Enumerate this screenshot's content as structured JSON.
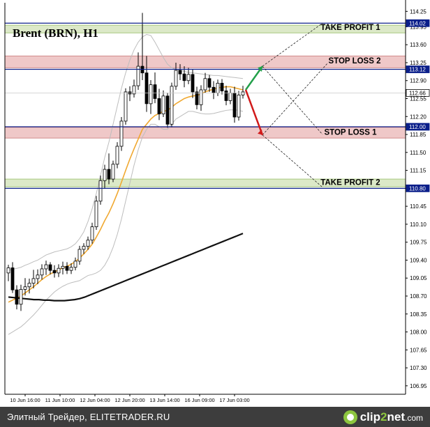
{
  "chart_data": {
    "type": "candlestick",
    "title": "Brent (BRN), H1",
    "price_ticks": [
      "114.25",
      "113.95",
      "113.60",
      "113.25",
      "112.90",
      "112.55",
      "112.20",
      "111.85",
      "111.50",
      "111.15",
      "110.80",
      "110.45",
      "110.10",
      "109.75",
      "109.40",
      "109.05",
      "108.70",
      "108.35",
      "108.00",
      "107.65",
      "107.30",
      "106.95"
    ],
    "ylim": [
      106.88,
      114.28
    ],
    "time_ticks": [
      "10 Jun 16:00",
      "11 Jun 10:00",
      "12 Jun 04:00",
      "12 Jun 20:00",
      "13 Jun 14:00",
      "16 Jun 09:00",
      "17 Jun 03:00"
    ],
    "price_labels": [
      {
        "text": "114.02",
        "value": 114.02,
        "color": "#0b1f8a"
      },
      {
        "text": "113.12",
        "value": 113.12,
        "color": "#0b1f8a"
      },
      {
        "text": "112.66",
        "value": 112.66,
        "color": "#ffffff"
      },
      {
        "text": "112.00",
        "value": 112.0,
        "color": "#0b1f8a"
      },
      {
        "text": "110.80",
        "value": 110.8,
        "color": "#0b1f8a"
      }
    ],
    "levels": [
      {
        "name": "TAKE PROFIT 1",
        "value": 114.02
      },
      {
        "name": "STOP LOSS 2",
        "value": 113.12
      },
      {
        "name": "STOP LOSS 1",
        "value": 112.0
      },
      {
        "name": "TAKE PROFIT 2",
        "value": 110.8
      }
    ],
    "zones": [
      {
        "label": "TAKE PROFIT 1",
        "from": 113.83,
        "to": 113.98,
        "fill": "#dce9c8",
        "stroke": "#a8c97f"
      },
      {
        "label": "STOP LOSS 2",
        "from": 113.15,
        "to": 113.38,
        "fill": "#efc8c8",
        "stroke": "#d08a8a"
      },
      {
        "label": "STOP LOSS 1",
        "from": 111.78,
        "to": 111.99,
        "fill": "#efc8c8",
        "stroke": "#d08a8a"
      },
      {
        "label": "TAKE PROFIT 2",
        "from": 110.83,
        "to": 110.98,
        "fill": "#dce9c8",
        "stroke": "#a8c97f"
      }
    ],
    "candles": [
      {
        "o": 109.15,
        "h": 109.31,
        "l": 108.99,
        "c": 109.25
      },
      {
        "o": 109.25,
        "h": 109.36,
        "l": 108.76,
        "c": 108.82
      },
      {
        "o": 108.82,
        "h": 108.91,
        "l": 108.44,
        "c": 108.54
      },
      {
        "o": 108.54,
        "h": 108.92,
        "l": 108.41,
        "c": 108.83
      },
      {
        "o": 108.83,
        "h": 109.05,
        "l": 108.71,
        "c": 108.88
      },
      {
        "o": 108.88,
        "h": 109.04,
        "l": 108.75,
        "c": 108.95
      },
      {
        "o": 108.95,
        "h": 109.21,
        "l": 108.85,
        "c": 109.04
      },
      {
        "o": 109.04,
        "h": 109.22,
        "l": 108.93,
        "c": 109.11
      },
      {
        "o": 109.11,
        "h": 109.32,
        "l": 109.02,
        "c": 109.23
      },
      {
        "o": 109.23,
        "h": 109.39,
        "l": 109.11,
        "c": 109.31
      },
      {
        "o": 109.31,
        "h": 109.36,
        "l": 109.12,
        "c": 109.2
      },
      {
        "o": 109.2,
        "h": 109.3,
        "l": 109.06,
        "c": 109.15
      },
      {
        "o": 109.15,
        "h": 109.32,
        "l": 109.07,
        "c": 109.24
      },
      {
        "o": 109.24,
        "h": 109.37,
        "l": 109.12,
        "c": 109.28
      },
      {
        "o": 109.28,
        "h": 109.36,
        "l": 109.13,
        "c": 109.2
      },
      {
        "o": 109.2,
        "h": 109.34,
        "l": 109.13,
        "c": 109.26
      },
      {
        "o": 109.26,
        "h": 109.45,
        "l": 109.2,
        "c": 109.38
      },
      {
        "o": 109.38,
        "h": 109.68,
        "l": 109.31,
        "c": 109.61
      },
      {
        "o": 109.61,
        "h": 109.73,
        "l": 109.52,
        "c": 109.67
      },
      {
        "o": 109.67,
        "h": 109.86,
        "l": 109.6,
        "c": 109.79
      },
      {
        "o": 109.79,
        "h": 110.13,
        "l": 109.72,
        "c": 110.05
      },
      {
        "o": 110.05,
        "h": 110.65,
        "l": 109.99,
        "c": 110.55
      },
      {
        "o": 110.55,
        "h": 111.05,
        "l": 110.48,
        "c": 110.95
      },
      {
        "o": 110.95,
        "h": 111.26,
        "l": 110.79,
        "c": 111.17
      },
      {
        "o": 111.17,
        "h": 111.48,
        "l": 110.88,
        "c": 110.98
      },
      {
        "o": 110.98,
        "h": 111.34,
        "l": 110.92,
        "c": 111.27
      },
      {
        "o": 111.27,
        "h": 111.7,
        "l": 111.19,
        "c": 111.62
      },
      {
        "o": 111.62,
        "h": 112.19,
        "l": 111.53,
        "c": 112.11
      },
      {
        "o": 112.11,
        "h": 112.75,
        "l": 112.04,
        "c": 112.68
      },
      {
        "o": 112.68,
        "h": 112.79,
        "l": 112.5,
        "c": 112.64
      },
      {
        "o": 112.64,
        "h": 112.92,
        "l": 112.57,
        "c": 112.8
      },
      {
        "o": 112.8,
        "h": 113.45,
        "l": 112.72,
        "c": 113.18
      },
      {
        "o": 113.18,
        "h": 114.22,
        "l": 112.91,
        "c": 113.05
      },
      {
        "o": 113.05,
        "h": 113.38,
        "l": 112.29,
        "c": 112.45
      },
      {
        "o": 112.45,
        "h": 112.91,
        "l": 112.25,
        "c": 112.82
      },
      {
        "o": 112.82,
        "h": 113.06,
        "l": 112.46,
        "c": 112.55
      },
      {
        "o": 112.55,
        "h": 112.74,
        "l": 112.13,
        "c": 112.25
      },
      {
        "o": 112.25,
        "h": 112.71,
        "l": 112.19,
        "c": 112.6
      },
      {
        "o": 112.6,
        "h": 112.66,
        "l": 111.98,
        "c": 112.05
      },
      {
        "o": 112.05,
        "h": 112.86,
        "l": 111.99,
        "c": 112.79
      },
      {
        "o": 112.79,
        "h": 113.25,
        "l": 112.72,
        "c": 113.1
      },
      {
        "o": 113.1,
        "h": 113.22,
        "l": 112.91,
        "c": 113.03
      },
      {
        "o": 113.03,
        "h": 113.18,
        "l": 112.77,
        "c": 112.9
      },
      {
        "o": 112.9,
        "h": 113.15,
        "l": 112.83,
        "c": 113.02
      },
      {
        "o": 113.02,
        "h": 113.12,
        "l": 112.56,
        "c": 112.68
      },
      {
        "o": 112.68,
        "h": 112.78,
        "l": 112.34,
        "c": 112.43
      },
      {
        "o": 112.43,
        "h": 112.81,
        "l": 112.31,
        "c": 112.72
      },
      {
        "o": 112.72,
        "h": 113.05,
        "l": 112.66,
        "c": 112.94
      },
      {
        "o": 112.94,
        "h": 113.01,
        "l": 112.68,
        "c": 112.77
      },
      {
        "o": 112.77,
        "h": 112.89,
        "l": 112.54,
        "c": 112.66
      },
      {
        "o": 112.66,
        "h": 112.92,
        "l": 112.6,
        "c": 112.85
      },
      {
        "o": 112.85,
        "h": 112.93,
        "l": 112.63,
        "c": 112.7
      },
      {
        "o": 112.7,
        "h": 112.8,
        "l": 112.42,
        "c": 112.51
      },
      {
        "o": 112.51,
        "h": 112.74,
        "l": 112.44,
        "c": 112.66
      },
      {
        "o": 112.66,
        "h": 112.78,
        "l": 112.08,
        "c": 112.19
      },
      {
        "o": 112.19,
        "h": 112.7,
        "l": 112.12,
        "c": 112.62
      },
      {
        "o": 112.62,
        "h": 112.8,
        "l": 112.55,
        "c": 112.68
      }
    ],
    "series": [
      {
        "name": "",
        "color": "#f0a830",
        "values": [
          108.58,
          108.62,
          108.66,
          108.7,
          108.76,
          108.82,
          108.88,
          108.95,
          109.02,
          109.08,
          109.13,
          109.17,
          109.21,
          109.25,
          109.28,
          109.32,
          109.37,
          109.44,
          109.52,
          109.61,
          109.71,
          109.85,
          110.0,
          110.17,
          110.32,
          110.5,
          110.7,
          110.92,
          111.15,
          111.37,
          111.57,
          111.76,
          111.95,
          112.05,
          112.15,
          112.22,
          112.26,
          112.3,
          112.32,
          112.38,
          112.45,
          112.5,
          112.55,
          112.58,
          112.6,
          112.61,
          112.64,
          112.68,
          112.71,
          112.73,
          112.76,
          112.77,
          112.78,
          112.78,
          112.76,
          112.74,
          112.72
        ]
      },
      {
        "name": "",
        "color": "#111111",
        "values": [
          108.68,
          108.67,
          108.66,
          108.65,
          108.64,
          108.63,
          108.63,
          108.62,
          108.62,
          108.61,
          108.61,
          108.61,
          108.62,
          108.63,
          108.65,
          108.68,
          108.72,
          108.76,
          108.8,
          108.84,
          108.88,
          108.92,
          108.96,
          109.0,
          109.04,
          109.08,
          109.12,
          109.16,
          109.2,
          109.24,
          109.28,
          109.32,
          109.36,
          109.4,
          109.44,
          109.48,
          109.52,
          109.56,
          109.6,
          109.64,
          109.68,
          109.72,
          109.76,
          109.8,
          109.84,
          109.88,
          109.92
        ]
      }
    ],
    "bands": {
      "upper": [
        109.2,
        109.22,
        109.24,
        109.26,
        109.3,
        109.33,
        109.37,
        109.4,
        109.45,
        109.5,
        109.53,
        109.56,
        109.58,
        109.6,
        109.62,
        109.66,
        109.72,
        109.82,
        109.95,
        110.15,
        110.4,
        110.7,
        111.05,
        111.4,
        111.7,
        112.05,
        112.4,
        112.75,
        113.05,
        113.3,
        113.5,
        113.65,
        113.75,
        113.8,
        113.78,
        113.65,
        113.5,
        113.35,
        113.22,
        113.15,
        113.12,
        113.1,
        113.08,
        113.06,
        113.05,
        113.04,
        113.03,
        113.02,
        113.01,
        113.0,
        113.0,
        112.99,
        112.98,
        112.97,
        112.96,
        112.95,
        112.94
      ],
      "lower": [
        107.95,
        108.0,
        108.05,
        108.1,
        108.17,
        108.25,
        108.33,
        108.42,
        108.52,
        108.62,
        108.7,
        108.78,
        108.84,
        108.89,
        108.93,
        108.96,
        108.98,
        109.0,
        109.05,
        109.1,
        109.12,
        109.15,
        109.2,
        109.3,
        109.45,
        109.65,
        109.9,
        110.2,
        110.55,
        110.9,
        111.25,
        111.55,
        111.8,
        111.95,
        112.05,
        112.05,
        112.0,
        111.95,
        111.95,
        112.05,
        112.15,
        112.2,
        112.25,
        112.3,
        112.3,
        112.28,
        112.26,
        112.25,
        112.25,
        112.26,
        112.28,
        112.3,
        112.32,
        112.33,
        112.33,
        112.32,
        112.3
      ]
    },
    "grid": false
  },
  "footer": {
    "left_text": "Элитный Трейдер, ELITETRADER.RU",
    "logo_main": "clip",
    "logo_accent": "2",
    "logo_tail": "net",
    "logo_suffix": ".com"
  }
}
